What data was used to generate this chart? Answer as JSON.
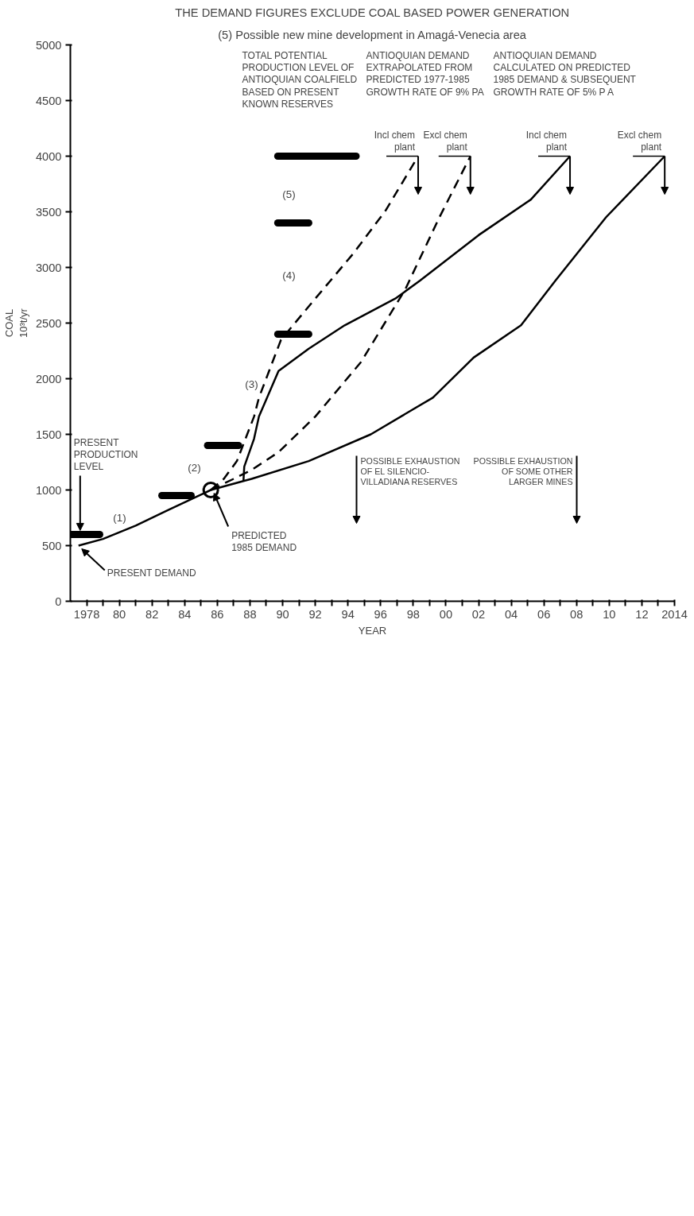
{
  "chart_data": {
    "type": "line",
    "title": "THE DEMAND FIGURES EXCLUDE COAL BASED POWER GENERATION",
    "xlabel": "YEAR",
    "ylabel": "COAL\n10³t/yr",
    "xlim": [
      1977,
      2014
    ],
    "ylim": [
      0,
      5000
    ],
    "xticks": [
      1978,
      {
        "value": 1979,
        "label": null
      },
      {
        "value": 1980,
        "label": "80"
      },
      {
        "value": 1981,
        "label": null
      },
      {
        "value": 1982,
        "label": "82"
      },
      {
        "value": 1983,
        "label": null
      },
      {
        "value": 1984,
        "label": "84"
      },
      {
        "value": 1985,
        "label": null
      },
      {
        "value": 1986,
        "label": "86"
      },
      {
        "value": 1987,
        "label": null
      },
      {
        "value": 1988,
        "label": "88"
      },
      {
        "value": 1989,
        "label": null
      },
      {
        "value": 1990,
        "label": "90"
      },
      {
        "value": 1991,
        "label": null
      },
      {
        "value": 1992,
        "label": "92"
      },
      {
        "value": 1993,
        "label": null
      },
      {
        "value": 1994,
        "label": "94"
      },
      {
        "value": 1995,
        "label": null
      },
      {
        "value": 1996,
        "label": "96"
      },
      {
        "value": 1997,
        "label": null
      },
      {
        "value": 1998,
        "label": "98"
      },
      {
        "value": 1999,
        "label": null
      },
      {
        "value": 2000,
        "label": "00"
      },
      {
        "value": 2001,
        "label": null
      },
      {
        "value": 2002,
        "label": "02"
      },
      {
        "value": 2003,
        "label": null
      },
      {
        "value": 2004,
        "label": "04"
      },
      {
        "value": 2005,
        "label": null
      },
      {
        "value": 2006,
        "label": "06"
      },
      {
        "value": 2007,
        "label": null
      },
      {
        "value": 2008,
        "label": "08"
      },
      {
        "value": 2009,
        "label": null
      },
      {
        "value": 2010,
        "label": "10"
      },
      {
        "value": 2011,
        "label": null
      },
      {
        "value": 2012,
        "label": "12"
      },
      {
        "value": 2013,
        "label": null
      },
      2014
    ],
    "yticks": [
      0,
      500,
      1000,
      1500,
      2000,
      2500,
      3000,
      3500,
      4000,
      4500,
      5000
    ],
    "series": [
      {
        "color": "#000000",
        "line_style": "solid",
        "x": [
          1977.5,
          1979,
          1981,
          1983,
          1985.6,
          1987.6,
          1988.1,
          1991.6,
          1995.4,
          1999.2,
          2001.7,
          2004.6,
          2006.7,
          2009.8,
          2013.4
        ],
        "values": [
          500,
          560,
          680,
          820,
          1000,
          1080,
          1100,
          1260,
          1500,
          1830,
          2190,
          2480,
          2880,
          3450,
          4000
        ]
      },
      {
        "color": "#000000",
        "line_style": "dashed",
        "x": [
          1985.6,
          1986.4,
          1987.2,
          1988.25,
          1988.55,
          1989.9,
          1992.0,
          1994.3,
          1996.3,
          1998.3
        ],
        "values": [
          1000,
          1100,
          1260,
          1660,
          1830,
          2350,
          2720,
          3120,
          3510,
          4000
        ]
      },
      {
        "color": "#000000",
        "line_style": "dashed",
        "x": [
          1985.6,
          1987.0,
          1988.1,
          1989.75,
          1992.0,
          1994.8,
          1997.5,
          1999.6,
          2001.5
        ],
        "values": [
          1000,
          1100,
          1180,
          1340,
          1660,
          2150,
          2800,
          3450,
          4000
        ]
      },
      {
        "color": "#000000",
        "line_style": "solid",
        "x": [
          1987.6,
          1987.65,
          1988.25,
          1988.55,
          1989.75,
          1991.6,
          1993.8,
          1996.9,
          1998.4,
          2002.0,
          2005.2,
          2007.6
        ],
        "values": [
          1080,
          1210,
          1460,
          1660,
          2070,
          2270,
          2480,
          2720,
          2880,
          3290,
          3610,
          4000
        ]
      },
      {
        "type": "step",
        "color": "#000000",
        "x": [
          1977,
          1978.8
        ],
        "values": [
          600,
          600
        ]
      },
      {
        "type": "step",
        "color": "#000000",
        "x": [
          1982.6,
          1984.4
        ],
        "values": [
          950,
          950
        ]
      },
      {
        "type": "step",
        "color": "#000000",
        "x": [
          1985.4,
          1987.3
        ],
        "values": [
          1400,
          1400
        ]
      },
      {
        "type": "step",
        "color": "#000000",
        "x": [
          1989.7,
          1991.6
        ],
        "values": [
          2400,
          2400
        ]
      },
      {
        "type": "step",
        "color": "#000000",
        "x": [
          1989.7,
          1991.6
        ],
        "values": [
          3400,
          3400
        ]
      },
      {
        "type": "step",
        "color": "#000000",
        "x": [
          1989.7,
          1994.5
        ],
        "values": [
          4000,
          4000
        ]
      },
      {
        "type": "scatter",
        "color": "#000000",
        "marker": "circle",
        "x": [
          1985.6
        ],
        "values": [
          1000
        ]
      }
    ],
    "annotations": [
      "(5) Possible new mine development in Amagá-Venecia area",
      "(1)",
      "(2)",
      "(3)",
      "(4)",
      "(5)",
      "TOTAL POTENTIAL\nPRODUCTION LEVEL OF\nANTIOQUIAN COALFIELD\nBASED ON PRESENT\nKNOWN RESERVES",
      "ANTIOQUIAN DEMAND\nEXTRAPOLATED FROM\nPREDICTED 1977-1985\nGROWTH RATE OF 9% PA",
      "ANTIOQUIAN DEMAND\nCALCULATED ON PREDICTED\n1985 DEMAND & SUBSEQUENT\nGROWTH RATE OF 5% P A",
      {
        "text": "Incl chem\nplant",
        "x": 1998.3,
        "y": 4000
      },
      {
        "text": "Excl chem\nplant",
        "x": 2001.5,
        "y": 4000
      },
      {
        "text": "Incl chem\nplant",
        "x": 2007.6,
        "y": 4000
      },
      {
        "text": "Excl chem\nplant",
        "x": 2013.4,
        "y": 4000
      },
      "POSSIBLE EXHAUSTION\nOF EL SILENCIO-\nVILLADIANA RESERVES",
      "POSSIBLE EXHAUSTION\nOF SOME OTHER\nLARGER MINES",
      {
        "text": "PRESENT\nPRODUCTION\nLEVEL",
        "x": 1977.6,
        "y": 636
      },
      {
        "text": "PRESENT DEMAND",
        "x": 1977.5,
        "y": 500
      },
      {
        "text": "PREDICTED\n1985 DEMAND",
        "x": 1985.6,
        "y": 1000
      }
    ]
  }
}
